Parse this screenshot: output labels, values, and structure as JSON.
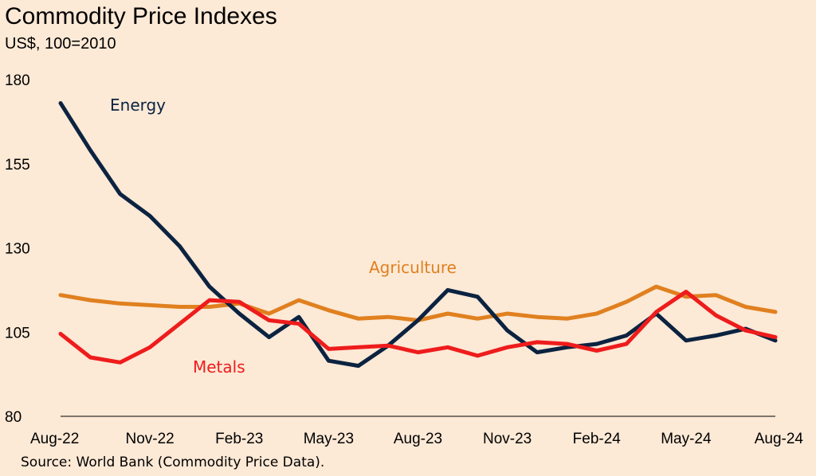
{
  "header": {
    "title": "Commodity Price Indexes",
    "subtitle": "US$, 100=2010"
  },
  "footer": {
    "source": "Source: World Bank (Commodity Price Data)."
  },
  "colors": {
    "background": "#fce9d6",
    "energy": "#0b2340",
    "agriculture": "#e0801f",
    "metals": "#ee1c1c",
    "axis": "#000000"
  },
  "chart_data": {
    "type": "line",
    "title": "Commodity Price Indexes",
    "subtitle": "US$, 100=2010",
    "xlabel": "",
    "ylabel": "",
    "ylim": [
      80,
      180
    ],
    "yticks": [
      "80",
      "105",
      "130",
      "155",
      "180"
    ],
    "grid": false,
    "x": [
      "Aug-22",
      "Sep-22",
      "Oct-22",
      "Nov-22",
      "Dec-22",
      "Jan-23",
      "Feb-23",
      "Mar-23",
      "Apr-23",
      "May-23",
      "Jun-23",
      "Jul-23",
      "Aug-23",
      "Sep-23",
      "Oct-23",
      "Nov-23",
      "Dec-23",
      "Jan-24",
      "Feb-24",
      "Mar-24",
      "Apr-24",
      "May-24",
      "Jun-24",
      "Jul-24",
      "Aug-24"
    ],
    "xticks": [
      "Aug-22",
      "Nov-22",
      "Feb-23",
      "May-23",
      "Aug-23",
      "Nov-23",
      "Feb-24",
      "May-24",
      "Aug-24"
    ],
    "series": [
      {
        "name": "Energy",
        "values": [
          173,
          159,
          146,
          139.5,
          130.5,
          118.5,
          110.5,
          103.5,
          109.5,
          96.5,
          95,
          101,
          108.5,
          117.5,
          115.5,
          105.5,
          99,
          100.5,
          101.5,
          104,
          110.5,
          102.5,
          104,
          106,
          102.5
        ]
      },
      {
        "name": "Agriculture",
        "values": [
          116,
          114.5,
          113.5,
          113,
          112.5,
          112.5,
          113.5,
          110.5,
          114.5,
          111.5,
          109,
          109.5,
          108.5,
          110.5,
          109,
          110.5,
          109.5,
          109,
          110.5,
          114,
          118.5,
          115.5,
          116,
          112.5,
          111
        ]
      },
      {
        "name": "Metals",
        "values": [
          104.5,
          97.5,
          96,
          100.5,
          107.5,
          114.5,
          114,
          108.5,
          107.5,
          100,
          100.5,
          101,
          99,
          100.5,
          98,
          100.5,
          102,
          101.5,
          99.5,
          101.5,
          111,
          117,
          110,
          105.5,
          103.5
        ]
      }
    ],
    "annotations": [
      {
        "text": "Energy",
        "series": "Energy"
      },
      {
        "text": "Agriculture",
        "series": "Agriculture"
      },
      {
        "text": "Metals",
        "series": "Metals"
      }
    ]
  }
}
